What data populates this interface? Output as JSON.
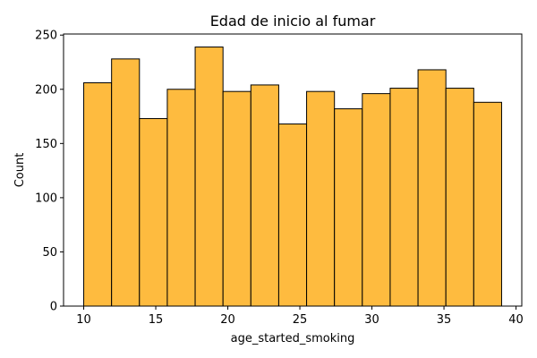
{
  "colors": {
    "bar_fill": "#febb3f",
    "bar_edge": "#000000",
    "axis": "#000000",
    "background": "#ffffff"
  },
  "chart_data": {
    "type": "bar",
    "title": "Edad de inicio al fumar",
    "xlabel": "age_started_smoking",
    "ylabel": "Count",
    "bin_edges": [
      10,
      11.9333,
      13.8667,
      15.8,
      17.7333,
      19.6667,
      21.6,
      23.5333,
      25.4667,
      27.4,
      29.3333,
      31.2667,
      33.2,
      35.1333,
      37.0667,
      39
    ],
    "values": [
      206,
      228,
      173,
      200,
      239,
      198,
      204,
      168,
      198,
      182,
      196,
      201,
      218,
      201,
      188
    ],
    "xlim": [
      8.6,
      40.4
    ],
    "ylim": [
      0,
      251
    ],
    "xticks": [
      10,
      15,
      20,
      25,
      30,
      35,
      40
    ],
    "yticks": [
      0,
      50,
      100,
      150,
      200,
      250
    ],
    "grid": false,
    "legend": "none"
  }
}
